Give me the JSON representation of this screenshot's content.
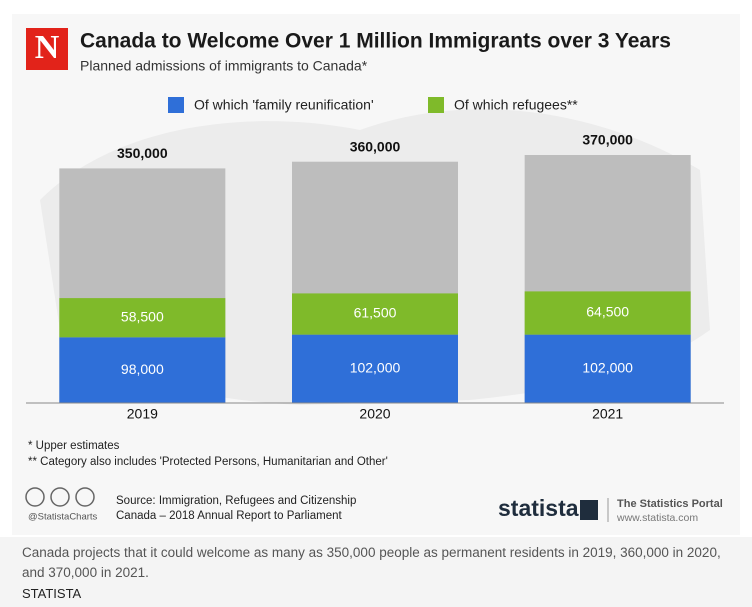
{
  "logo": "N",
  "chart_data": {
    "type": "bar",
    "stacked": true,
    "title": "Canada to Welcome Over 1 Million Immigrants over 3 Years",
    "subtitle": "Planned admissions of immigrants to Canada*",
    "categories": [
      "2019",
      "2020",
      "2021"
    ],
    "series": [
      {
        "name": "Of which 'family reunification'",
        "color": "#2f6fd8",
        "values": [
          98000,
          102000,
          102000
        ],
        "value_labels": [
          "98,000",
          "102,000",
          "102,000"
        ]
      },
      {
        "name": "Of which refugees**",
        "color": "#7fba2a",
        "values": [
          58500,
          61500,
          64500
        ],
        "value_labels": [
          "58,500",
          "61,500",
          "64,500"
        ]
      }
    ],
    "totals": {
      "color": "#bdbdbd",
      "values": [
        350000,
        360000,
        370000
      ],
      "value_labels": [
        "350,000",
        "360,000",
        "370,000"
      ]
    },
    "footnotes": [
      "*  Upper estimates",
      "** Category also includes 'Protected Persons, Humanitarian and Other'"
    ],
    "source": [
      "Source: Immigration, Refugees and Citizenship",
      "Canada – 2018 Annual Report to Parliament"
    ]
  },
  "branding": {
    "handle": "@StatistaCharts",
    "name": "statista",
    "portal": "The Statistics Portal",
    "url": "www.statista.com"
  },
  "caption": "Canada projects that it could welcome as many as 350,000 people as permanent residents in 2019, 360,000 in 2020, and 370,000 in 2021.",
  "publisher": "STATISTA"
}
